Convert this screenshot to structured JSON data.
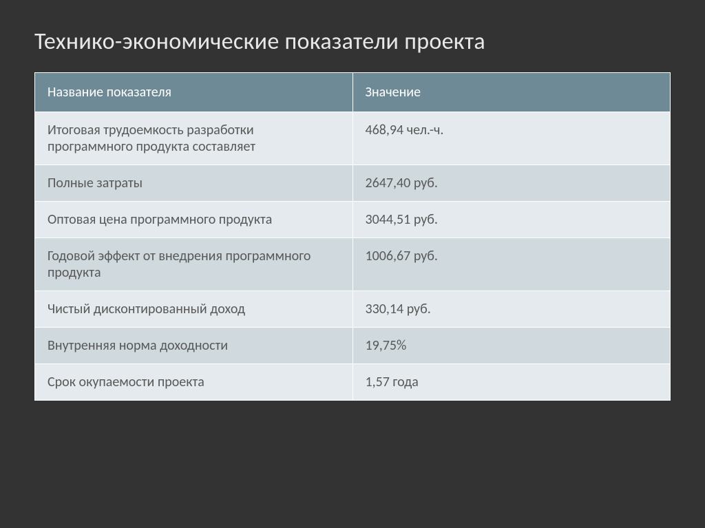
{
  "title": "Технико-экономические показатели проекта",
  "table": {
    "columns": [
      "Название показателя",
      "Значение"
    ],
    "rows": [
      [
        "Итоговая трудоемкость разработки программного продукта составляет",
        "468,94 чел.-ч."
      ],
      [
        "Полные затраты",
        "2647,40 руб."
      ],
      [
        "Оптовая цена программного продукта",
        "3044,51 руб."
      ],
      [
        "Годовой эффект от внедрения программного продукта",
        "1006,67 руб."
      ],
      [
        "Чистый дисконтированный доход",
        "330,14 руб."
      ],
      [
        "Внутренняя норма доходности",
        "19,75%"
      ],
      [
        "Срок окупаемости проекта",
        "1,57 года"
      ]
    ],
    "header_bg": "#6d8a96",
    "header_text_color": "#ffffff",
    "row_odd_bg": "#e4eaed",
    "row_even_bg": "#cfd9de",
    "cell_text_color": "#595959",
    "title_color": "#e8e8e8",
    "slide_bg": "#333333",
    "font_size_title": 34,
    "font_size_cell": 20,
    "col_widths": [
      "50%",
      "50%"
    ]
  }
}
